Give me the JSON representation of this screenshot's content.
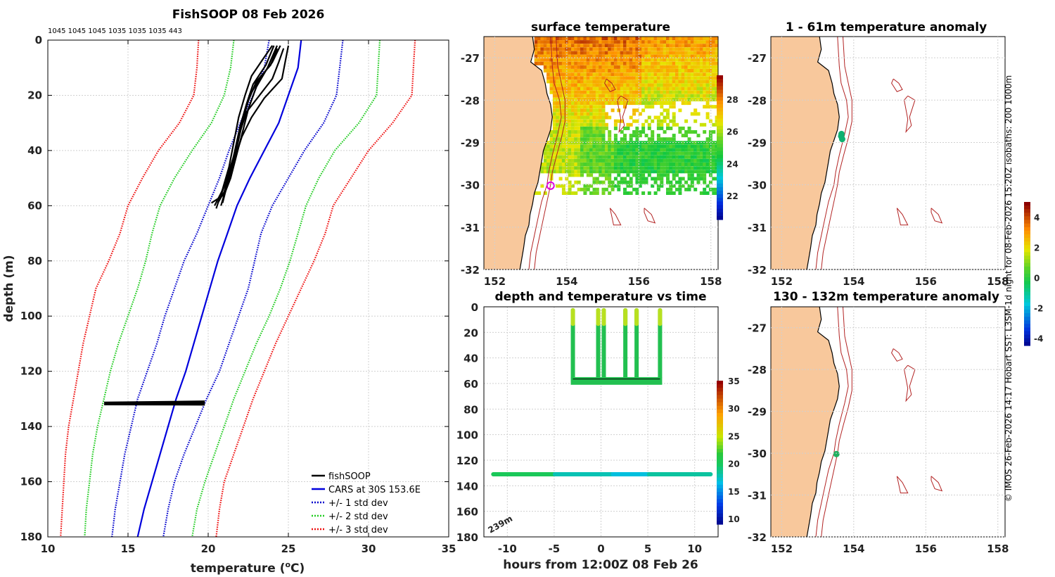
{
  "colors": {
    "land": "#f8c89c",
    "coast": "#000000",
    "isobath": "#b22222",
    "fishsoop": "#000000",
    "cars": "#0000dd",
    "std1": "#0000cc",
    "std2": "#22cc22",
    "std3": "#ee1111",
    "marker": "#dd00dd"
  },
  "chart_data": [
    {
      "id": "profile",
      "type": "line",
      "title": "FishSOOP 08 Feb 2026",
      "subtitle": "1045 1045 1045 1035 1035 1035 443",
      "xlabel_main": "temperature (",
      "xlabel_sup": "o",
      "xlabel_end": "C)",
      "ylabel": "depth (m)",
      "xlim": [
        10,
        35
      ],
      "ylim": [
        0,
        180
      ],
      "xticks": [
        10,
        15,
        20,
        25,
        30,
        35
      ],
      "yticks": [
        0,
        20,
        40,
        60,
        80,
        100,
        120,
        140,
        160,
        180
      ],
      "series": [
        {
          "name": "CARS at 30S 153.6E",
          "style": "solid",
          "color_key": "cars",
          "points": [
            [
              25.8,
              0
            ],
            [
              25.6,
              10
            ],
            [
              25.0,
              20
            ],
            [
              24.4,
              30
            ],
            [
              23.5,
              40
            ],
            [
              22.6,
              50
            ],
            [
              21.8,
              60
            ],
            [
              21.2,
              70
            ],
            [
              20.6,
              80
            ],
            [
              20.1,
              90
            ],
            [
              19.6,
              100
            ],
            [
              19.1,
              110
            ],
            [
              18.6,
              120
            ],
            [
              18.0,
              130
            ],
            [
              17.5,
              140
            ],
            [
              17.0,
              150
            ],
            [
              16.5,
              160
            ],
            [
              16.0,
              170
            ],
            [
              15.6,
              180
            ]
          ]
        },
        {
          "name": "+/- 1 std dev",
          "style": "dotted",
          "color_key": "std1",
          "points": [
            [
              23.8,
              0
            ],
            [
              23.5,
              10
            ],
            [
              22.8,
              20
            ],
            [
              22.0,
              30
            ],
            [
              21.3,
              40
            ],
            [
              20.7,
              50
            ],
            [
              20.0,
              60
            ],
            [
              19.3,
              70
            ],
            [
              18.5,
              80
            ],
            [
              17.9,
              90
            ],
            [
              17.3,
              100
            ],
            [
              16.8,
              110
            ],
            [
              16.2,
              120
            ],
            [
              15.6,
              130
            ],
            [
              15.2,
              140
            ],
            [
              14.8,
              150
            ],
            [
              14.5,
              160
            ],
            [
              14.2,
              170
            ],
            [
              14.0,
              180
            ]
          ]
        },
        {
          "name": "+/- 1 std dev upper",
          "style": "dotted",
          "color_key": "std1",
          "points": [
            [
              28.4,
              0
            ],
            [
              28.2,
              10
            ],
            [
              28.0,
              20
            ],
            [
              27.2,
              30
            ],
            [
              26.0,
              40
            ],
            [
              25.0,
              50
            ],
            [
              24.0,
              60
            ],
            [
              23.3,
              70
            ],
            [
              22.9,
              80
            ],
            [
              22.5,
              90
            ],
            [
              21.9,
              100
            ],
            [
              21.3,
              110
            ],
            [
              20.7,
              120
            ],
            [
              19.9,
              130
            ],
            [
              19.2,
              140
            ],
            [
              18.5,
              150
            ],
            [
              17.9,
              160
            ],
            [
              17.5,
              170
            ],
            [
              17.2,
              180
            ]
          ]
        },
        {
          "name": "+/- 2 std dev",
          "style": "dotted",
          "color_key": "std2",
          "points": [
            [
              21.6,
              0
            ],
            [
              21.4,
              10
            ],
            [
              21.0,
              20
            ],
            [
              20.2,
              30
            ],
            [
              19.0,
              40
            ],
            [
              17.9,
              50
            ],
            [
              17.0,
              60
            ],
            [
              16.5,
              70
            ],
            [
              16.1,
              80
            ],
            [
              15.6,
              90
            ],
            [
              15.0,
              100
            ],
            [
              14.4,
              110
            ],
            [
              13.9,
              120
            ],
            [
              13.5,
              130
            ],
            [
              13.1,
              140
            ],
            [
              12.8,
              150
            ],
            [
              12.6,
              160
            ],
            [
              12.4,
              170
            ],
            [
              12.3,
              180
            ]
          ]
        },
        {
          "name": "+/- 2 std dev upper",
          "style": "dotted",
          "color_key": "std2",
          "points": [
            [
              30.7,
              0
            ],
            [
              30.6,
              10
            ],
            [
              30.5,
              20
            ],
            [
              29.4,
              30
            ],
            [
              27.9,
              40
            ],
            [
              26.9,
              50
            ],
            [
              26.1,
              60
            ],
            [
              25.6,
              70
            ],
            [
              25.1,
              80
            ],
            [
              24.5,
              90
            ],
            [
              23.8,
              100
            ],
            [
              23.0,
              110
            ],
            [
              22.3,
              120
            ],
            [
              21.6,
              130
            ],
            [
              21.0,
              140
            ],
            [
              20.4,
              150
            ],
            [
              19.8,
              160
            ],
            [
              19.3,
              170
            ],
            [
              19.0,
              180
            ]
          ]
        },
        {
          "name": "+/- 3 std dev",
          "style": "dotted",
          "color_key": "std3",
          "points": [
            [
              19.4,
              0
            ],
            [
              19.3,
              10
            ],
            [
              19.1,
              20
            ],
            [
              18.2,
              30
            ],
            [
              16.9,
              40
            ],
            [
              15.9,
              50
            ],
            [
              15.0,
              60
            ],
            [
              14.5,
              70
            ],
            [
              13.8,
              80
            ],
            [
              13.0,
              90
            ],
            [
              12.6,
              100
            ],
            [
              12.2,
              110
            ],
            [
              11.9,
              120
            ],
            [
              11.6,
              130
            ],
            [
              11.3,
              140
            ],
            [
              11.1,
              150
            ],
            [
              11.0,
              160
            ],
            [
              10.9,
              170
            ],
            [
              10.8,
              180
            ]
          ]
        },
        {
          "name": "+/- 3 std dev upper",
          "style": "dotted",
          "color_key": "std3",
          "points": [
            [
              32.9,
              0
            ],
            [
              32.8,
              10
            ],
            [
              32.7,
              20
            ],
            [
              31.5,
              30
            ],
            [
              30.0,
              40
            ],
            [
              28.9,
              50
            ],
            [
              27.8,
              60
            ],
            [
              27.3,
              70
            ],
            [
              26.6,
              80
            ],
            [
              25.8,
              90
            ],
            [
              25.0,
              100
            ],
            [
              24.2,
              110
            ],
            [
              23.5,
              120
            ],
            [
              22.8,
              130
            ],
            [
              22.2,
              140
            ],
            [
              21.6,
              150
            ],
            [
              21.0,
              160
            ],
            [
              20.7,
              170
            ],
            [
              20.5,
              180
            ]
          ]
        }
      ],
      "fishsoop_casts": [
        [
          [
            24.5,
            2
          ],
          [
            24.0,
            8
          ],
          [
            23.2,
            14
          ],
          [
            22.6,
            20
          ],
          [
            22.2,
            28
          ],
          [
            21.9,
            36
          ],
          [
            21.6,
            44
          ],
          [
            21.2,
            52
          ],
          [
            20.9,
            59
          ]
        ],
        [
          [
            24.3,
            3
          ],
          [
            23.9,
            9
          ],
          [
            23.0,
            15
          ],
          [
            22.5,
            22
          ],
          [
            22.1,
            30
          ],
          [
            21.8,
            38
          ],
          [
            21.5,
            46
          ],
          [
            21.1,
            54
          ],
          [
            20.8,
            60
          ]
        ],
        [
          [
            24.1,
            2
          ],
          [
            23.6,
            9
          ],
          [
            22.8,
            16
          ],
          [
            22.4,
            23
          ],
          [
            22.0,
            31
          ],
          [
            21.7,
            39
          ],
          [
            21.4,
            47
          ],
          [
            21.0,
            55
          ],
          [
            20.6,
            59
          ]
        ],
        [
          [
            24.7,
            3
          ],
          [
            24.4,
            8
          ],
          [
            24.0,
            14
          ],
          [
            23.2,
            20
          ],
          [
            22.4,
            26
          ],
          [
            22.0,
            33
          ],
          [
            21.6,
            42
          ],
          [
            21.1,
            51
          ],
          [
            20.7,
            58
          ]
        ],
        [
          [
            25.0,
            2
          ],
          [
            24.8,
            8
          ],
          [
            24.6,
            14
          ],
          [
            23.5,
            21
          ],
          [
            22.7,
            28
          ],
          [
            22.1,
            35
          ],
          [
            21.6,
            44
          ],
          [
            21.1,
            52
          ],
          [
            20.4,
            60
          ]
        ],
        [
          [
            24.0,
            2
          ],
          [
            23.4,
            7
          ],
          [
            22.7,
            13
          ],
          [
            22.3,
            20
          ],
          [
            21.9,
            28
          ],
          [
            21.6,
            37
          ],
          [
            21.3,
            46
          ],
          [
            20.9,
            54
          ],
          [
            20.5,
            61
          ]
        ],
        [
          [
            24.3,
            2
          ],
          [
            23.7,
            10
          ],
          [
            23.0,
            17
          ],
          [
            22.5,
            25
          ],
          [
            22.2,
            32
          ],
          [
            21.8,
            41
          ],
          [
            21.4,
            50
          ],
          [
            21.0,
            56
          ],
          [
            20.2,
            59
          ]
        ]
      ],
      "fishsoop_bottom": {
        "depth": 131.5,
        "tmin": 13.6,
        "tmax": 19.7
      },
      "legend": [
        "fishSOOP",
        "CARS at 30S 153.6E",
        "+/- 1 std dev",
        "+/- 2 std dev",
        "+/- 3 std dev"
      ]
    },
    {
      "id": "surface",
      "type": "heatmap",
      "title": "surface temperature",
      "xlim": [
        151.7,
        158.2
      ],
      "ylim": [
        -32,
        -26.5
      ],
      "xticks": [
        152,
        154,
        156,
        158
      ],
      "yticks": [
        -27,
        -28,
        -29,
        -30,
        -31,
        -32
      ],
      "colorbar": {
        "min": 20.5,
        "max": 29.5,
        "ticks": [
          22,
          24,
          26,
          28
        ]
      },
      "marker": {
        "lon": 153.55,
        "lat": -30.02
      }
    },
    {
      "id": "anom61",
      "type": "scatter",
      "title": "1 - 61m temperature anomaly",
      "xlim": [
        151.7,
        158.2
      ],
      "ylim": [
        -32,
        -26.5
      ],
      "xticks": [
        152,
        154,
        156,
        158
      ],
      "yticks": [
        -27,
        -28,
        -29,
        -30,
        -31,
        -32
      ],
      "points": [
        [
          153.65,
          -28.85
        ],
        [
          153.68,
          -28.92
        ],
        [
          153.66,
          -28.8
        ]
      ],
      "colorbar": {
        "min": -4.5,
        "max": 5,
        "ticks": [
          -4,
          -2,
          0,
          2,
          4
        ]
      }
    },
    {
      "id": "timeseries",
      "type": "scatter",
      "title": "depth and temperature vs time",
      "xlabel": "hours from 12:00Z 08 Feb 26",
      "xlim": [
        -12.5,
        12.5
      ],
      "ylim": [
        0,
        180
      ],
      "xticks": [
        -10,
        -5,
        0,
        5,
        10
      ],
      "yticks": [
        0,
        20,
        40,
        60,
        80,
        100,
        120,
        140,
        160,
        180
      ],
      "annotation": "239m",
      "casts_hours": [
        -3.0,
        -0.3,
        0.3,
        2.6,
        3.8,
        6.3
      ],
      "cast_bottom": 57,
      "bottom_track": {
        "start": -11.5,
        "end": 11.7,
        "depth": 131
      },
      "colorbar": {
        "min": 9,
        "max": 35,
        "ticks": [
          10,
          15,
          20,
          25,
          30,
          35
        ]
      }
    },
    {
      "id": "anom132",
      "type": "scatter",
      "title": "130 - 132m temperature anomaly",
      "xlim": [
        151.7,
        158.2
      ],
      "ylim": [
        -32,
        -26.5
      ],
      "xticks": [
        152,
        154,
        156,
        158
      ],
      "yticks": [
        -27,
        -28,
        -29,
        -30,
        -31,
        -32
      ],
      "points": [
        [
          153.52,
          -30.02
        ]
      ]
    }
  ],
  "side_caption": "© IMOS 26-Feb-2026 14:17 Hobart SST: L3SM-1d night for 08-Feb-2026 15:20Z isobaths: 200  1000m"
}
